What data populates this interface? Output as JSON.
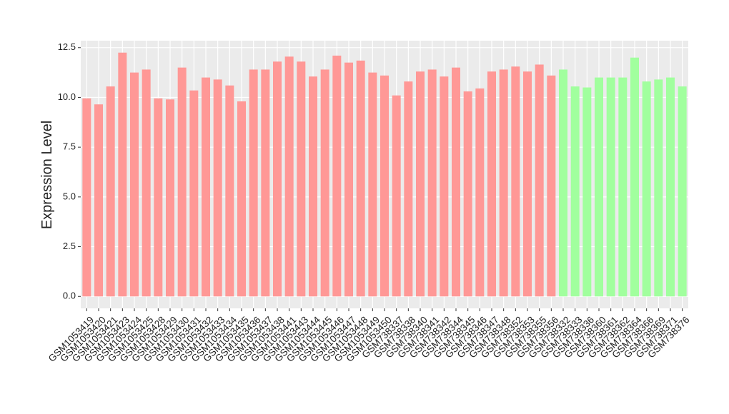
{
  "chart_data": {
    "type": "bar",
    "y_label": "Expression Level",
    "categories": [
      "GSM1053419",
      "GSM1053420",
      "GSM1053421",
      "GSM1053423",
      "GSM1053424",
      "GSM1053425",
      "GSM1053428",
      "GSM1053429",
      "GSM1053430",
      "GSM1053431",
      "GSM1053432",
      "GSM1053433",
      "GSM1053434",
      "GSM1053435",
      "GSM1053436",
      "GSM1053437",
      "GSM1053438",
      "GSM1053441",
      "GSM1053443",
      "GSM1053444",
      "GSM1053445",
      "GSM1053446",
      "GSM1053447",
      "GSM1053448",
      "GSM1053449",
      "GSM1053450",
      "GSM738337",
      "GSM738338",
      "GSM738340",
      "GSM738341",
      "GSM738342",
      "GSM738344",
      "GSM738345",
      "GSM738346",
      "GSM738347",
      "GSM738348",
      "GSM738352",
      "GSM738353",
      "GSM738355",
      "GSM738356",
      "GSM738332",
      "GSM738333",
      "GSM738336",
      "GSM738360",
      "GSM738361",
      "GSM738362",
      "GSM738364",
      "GSM738366",
      "GSM738369",
      "GSM738371",
      "GSM738376"
    ],
    "values": [
      9.95,
      9.65,
      10.55,
      12.25,
      11.25,
      11.4,
      9.95,
      9.9,
      11.5,
      10.35,
      11.0,
      10.9,
      10.6,
      9.8,
      11.4,
      11.4,
      11.8,
      12.05,
      11.8,
      11.05,
      11.4,
      12.1,
      11.75,
      11.85,
      11.25,
      11.1,
      10.1,
      10.8,
      11.3,
      11.4,
      11.05,
      11.5,
      10.3,
      10.45,
      11.3,
      11.4,
      11.55,
      11.3,
      11.65,
      11.1,
      11.4,
      10.55,
      10.5,
      11.0,
      11.0,
      11.0,
      12.0,
      10.8,
      10.9,
      11.0,
      10.55
    ],
    "colors": [
      "#ff9896",
      "#ff9896",
      "#ff9896",
      "#ff9896",
      "#ff9896",
      "#ff9896",
      "#ff9896",
      "#ff9896",
      "#ff9896",
      "#ff9896",
      "#ff9896",
      "#ff9896",
      "#ff9896",
      "#ff9896",
      "#ff9896",
      "#ff9896",
      "#ff9896",
      "#ff9896",
      "#ff9896",
      "#ff9896",
      "#ff9896",
      "#ff9896",
      "#ff9896",
      "#ff9896",
      "#ff9896",
      "#ff9896",
      "#ff9896",
      "#ff9896",
      "#ff9896",
      "#ff9896",
      "#ff9896",
      "#ff9896",
      "#ff9896",
      "#ff9896",
      "#ff9896",
      "#ff9896",
      "#ff9896",
      "#ff9896",
      "#ff9896",
      "#ff9896",
      "#a1ff9e",
      "#a1ff9e",
      "#a1ff9e",
      "#a1ff9e",
      "#a1ff9e",
      "#a1ff9e",
      "#a1ff9e",
      "#a1ff9e",
      "#a1ff9e",
      "#a1ff9e",
      "#a1ff9e"
    ],
    "ylim": [
      -0.6,
      12.85
    ],
    "yticks": [
      {
        "value": 0,
        "label": "0.0"
      },
      {
        "value": 2.5,
        "label": "2.5"
      },
      {
        "value": 5,
        "label": "5.0"
      },
      {
        "value": 7.5,
        "label": "7.5"
      },
      {
        "value": 10,
        "label": "10.0"
      },
      {
        "value": 12.5,
        "label": "12.5"
      }
    ],
    "grid": true
  }
}
